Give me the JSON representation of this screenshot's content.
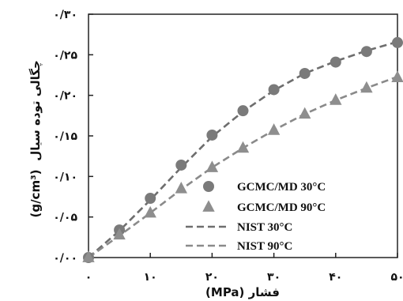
{
  "chart_data": {
    "type": "line",
    "title": "",
    "xlabel": "فشار (MPa)",
    "ylabel": "چگالی توده سیال (g/cm³)",
    "ylabel_text": "چگالی توده سیال",
    "ylabel_unit": "(g/cm³)",
    "xlim": [
      0,
      50
    ],
    "ylim": [
      0.0,
      0.3
    ],
    "x_ticks": [
      0,
      10,
      20,
      30,
      40,
      50
    ],
    "y_ticks": [
      0.0,
      0.05,
      0.1,
      0.15,
      0.2,
      0.25,
      0.3
    ],
    "x_tick_labels": [
      "۰",
      "۱۰",
      "۲۰",
      "۳۰",
      "۴۰",
      "۵۰"
    ],
    "y_tick_labels": [
      "۰/۰۰",
      "۰/۰۵",
      "۰/۱۰",
      "۰/۱۵",
      "۰/۲۰",
      "۰/۲۵",
      "۰/۳۰"
    ],
    "grid": false,
    "legend_position": "bottom-right",
    "series": [
      {
        "name": "GCMC/MD 30°C",
        "kind": "markers",
        "marker": "circle",
        "color": "#7a7a7a",
        "x": [
          0,
          5,
          10,
          15,
          20,
          25,
          30,
          35,
          40,
          45,
          50
        ],
        "y": [
          0.0,
          0.034,
          0.073,
          0.114,
          0.151,
          0.181,
          0.207,
          0.227,
          0.241,
          0.254,
          0.265
        ]
      },
      {
        "name": "GCMC/MD 90°C",
        "kind": "markers",
        "marker": "triangle",
        "color": "#8e8e8e",
        "x": [
          0,
          5,
          10,
          15,
          20,
          25,
          30,
          35,
          40,
          45,
          50
        ],
        "y": [
          0.0,
          0.028,
          0.055,
          0.085,
          0.111,
          0.135,
          0.157,
          0.177,
          0.194,
          0.209,
          0.222
        ]
      },
      {
        "name": "NIST 30°C",
        "kind": "dashed-line",
        "color": "#6e6e6e",
        "x": [
          0,
          5,
          10,
          15,
          20,
          25,
          30,
          35,
          40,
          45,
          50
        ],
        "y": [
          0.0,
          0.033,
          0.071,
          0.111,
          0.149,
          0.18,
          0.206,
          0.227,
          0.242,
          0.255,
          0.266
        ]
      },
      {
        "name": "NIST 90°C",
        "kind": "dashed-line",
        "color": "#8a8a8a",
        "x": [
          0,
          5,
          10,
          15,
          20,
          25,
          30,
          35,
          40,
          45,
          50
        ],
        "y": [
          0.0,
          0.027,
          0.055,
          0.084,
          0.111,
          0.135,
          0.157,
          0.177,
          0.194,
          0.209,
          0.223
        ]
      }
    ]
  }
}
